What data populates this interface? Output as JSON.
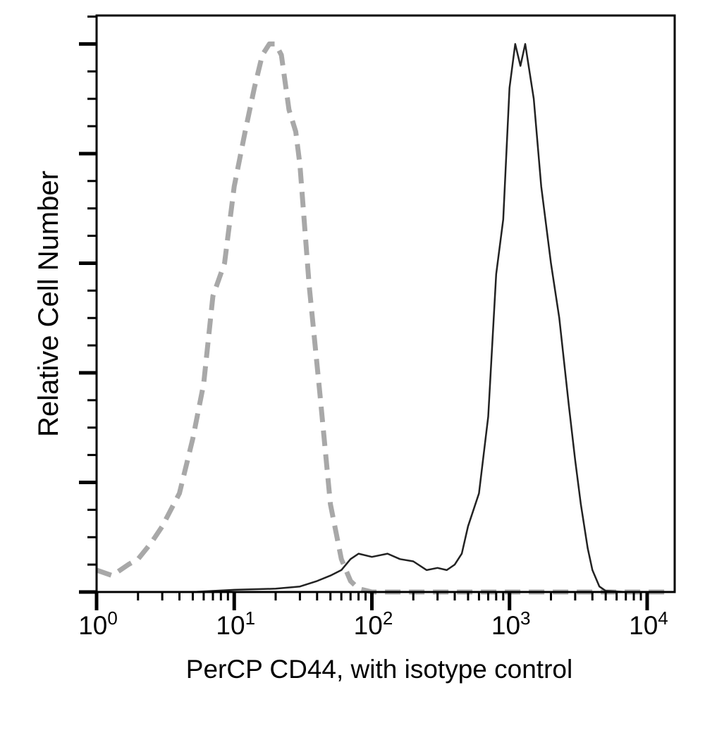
{
  "chart_data": {
    "type": "line",
    "title": "",
    "xlabel": "PerCP CD44, with isotype control",
    "ylabel": "Relative Cell Number",
    "x_scale": "log",
    "xlim": [
      1,
      15849
    ],
    "ylim": [
      0,
      5.26
    ],
    "x_tick_labels": [
      {
        "base": "10",
        "exp": "0",
        "value": 1
      },
      {
        "base": "10",
        "exp": "1",
        "value": 10
      },
      {
        "base": "10",
        "exp": "2",
        "value": 100
      },
      {
        "base": "10",
        "exp": "3",
        "value": 1000
      },
      {
        "base": "10",
        "exp": "4",
        "value": 10000
      }
    ],
    "y_major_ticks": [
      0,
      1,
      2,
      3,
      4,
      5
    ],
    "grid": false,
    "legend": "none",
    "series": [
      {
        "style": "dashed",
        "color": "#a8a8a8",
        "x": [
          1,
          1.3,
          1.7,
          2,
          2.5,
          3,
          4,
          5,
          6,
          7,
          8.5,
          10,
          12,
          14,
          16,
          18,
          20,
          22,
          25,
          28,
          30,
          35,
          42,
          50,
          60,
          70,
          80,
          100,
          200,
          500,
          1000,
          3000,
          5000,
          15000
        ],
        "y": [
          0.2,
          0.15,
          0.25,
          0.3,
          0.45,
          0.6,
          0.9,
          1.4,
          1.9,
          2.7,
          3.0,
          3.7,
          4.2,
          4.6,
          4.9,
          5.0,
          5.0,
          4.9,
          4.4,
          4.2,
          3.9,
          2.8,
          1.8,
          0.8,
          0.3,
          0.1,
          0.03,
          0,
          0,
          0,
          0,
          0,
          0,
          0
        ]
      },
      {
        "style": "solid",
        "color": "#222222",
        "x": [
          1,
          5,
          10,
          20,
          30,
          40,
          50,
          60,
          70,
          80,
          100,
          130,
          160,
          200,
          250,
          300,
          350,
          400,
          450,
          500,
          600,
          700,
          800,
          900,
          1000,
          1100,
          1200,
          1300,
          1500,
          1700,
          2000,
          2300,
          2700,
          3000,
          3300,
          3700,
          4000,
          4500,
          5000,
          7000,
          15000
        ],
        "y": [
          0,
          0,
          0.02,
          0.03,
          0.05,
          0.1,
          0.15,
          0.2,
          0.3,
          0.35,
          0.32,
          0.35,
          0.3,
          0.28,
          0.2,
          0.22,
          0.2,
          0.25,
          0.35,
          0.6,
          0.9,
          1.6,
          2.9,
          3.4,
          4.6,
          5.0,
          4.8,
          5.0,
          4.5,
          3.7,
          3.0,
          2.5,
          1.7,
          1.2,
          0.8,
          0.4,
          0.2,
          0.05,
          0.01,
          0,
          0
        ]
      }
    ]
  }
}
